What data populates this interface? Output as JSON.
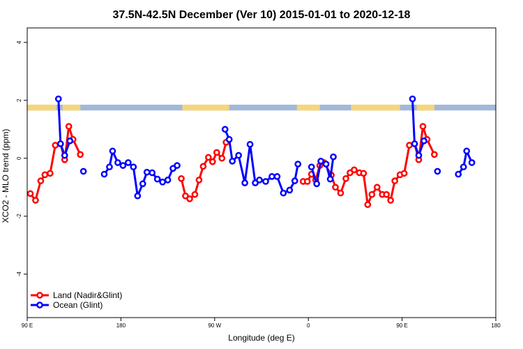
{
  "chart_data": {
    "type": "line",
    "title": "37.5N-42.5N December (Ver 10)   2015-01-01 to 2020-12-18",
    "xlabel": "Longitude (deg E)",
    "ylabel": "XCO2 - MLO trend (ppm)",
    "xlim": [
      90,
      540
    ],
    "ylim": [
      -5.5,
      4.5
    ],
    "x_ticks": [
      {
        "value": 90,
        "label": "90 E"
      },
      {
        "value": 180,
        "label": "180"
      },
      {
        "value": 270,
        "label": "90 W"
      },
      {
        "value": 360,
        "label": "0"
      },
      {
        "value": 450,
        "label": "90 E"
      },
      {
        "value": 540,
        "label": "180"
      }
    ],
    "y_ticks": [
      {
        "value": 4,
        "label": "4"
      },
      {
        "value": 2,
        "label": "2"
      },
      {
        "value": 0,
        "label": "0"
      },
      {
        "value": -2,
        "label": "-2"
      },
      {
        "value": -4,
        "label": "-4"
      }
    ],
    "land_ocean_strip": {
      "y_range": [
        1.65,
        1.85
      ],
      "land_color": "#f5d67a",
      "ocean_color": "#a3b8d8",
      "land_segments": [
        [
          90,
          118
        ],
        [
          124,
          141
        ],
        [
          239,
          284
        ],
        [
          349,
          371
        ],
        [
          401,
          448
        ],
        [
          464,
          481
        ]
      ]
    },
    "legend_position": "bottom-left",
    "series": [
      {
        "name": "Land (Nadir&Glint)",
        "color": "#ff0000",
        "segments": [
          [
            [
              93,
              -1.22
            ],
            [
              98,
              -1.45
            ],
            [
              103,
              -0.78
            ],
            [
              107,
              -0.57
            ],
            [
              112,
              -0.52
            ],
            [
              117,
              0.45
            ],
            [
              122,
              0.5
            ],
            [
              126,
              -0.05
            ],
            [
              130,
              1.1
            ],
            [
              134,
              0.65
            ],
            [
              141,
              0.13
            ]
          ],
          [
            [
              238,
              -0.7
            ],
            [
              242,
              -1.3
            ],
            [
              246,
              -1.4
            ],
            [
              251,
              -1.25
            ],
            [
              255,
              -0.75
            ],
            [
              259,
              -0.28
            ],
            [
              264,
              0.03
            ],
            [
              268,
              -0.12
            ],
            [
              272,
              0.2
            ],
            [
              277,
              0.0
            ],
            [
              281,
              0.55
            ]
          ],
          [
            [
              355,
              -0.8
            ],
            [
              359,
              -0.8
            ],
            [
              363,
              -0.55
            ],
            [
              367,
              -0.75
            ],
            [
              371,
              -0.25
            ],
            [
              375,
              -0.15
            ],
            [
              382,
              -0.58
            ],
            [
              386,
              -1.0
            ],
            [
              391,
              -1.2
            ],
            [
              396,
              -0.7
            ],
            [
              400,
              -0.5
            ],
            [
              404,
              -0.4
            ],
            [
              409,
              -0.5
            ],
            [
              413,
              -0.52
            ],
            [
              417,
              -1.6
            ],
            [
              421,
              -1.25
            ],
            [
              426,
              -1.0
            ],
            [
              431,
              -1.25
            ],
            [
              435,
              -1.25
            ],
            [
              439,
              -1.45
            ],
            [
              443,
              -0.78
            ],
            [
              448,
              -0.57
            ],
            [
              452,
              -0.52
            ],
            [
              457,
              0.45
            ],
            [
              462,
              0.5
            ],
            [
              466,
              -0.05
            ],
            [
              470,
              1.1
            ],
            [
              474,
              0.65
            ],
            [
              481,
              0.13
            ]
          ]
        ]
      },
      {
        "name": "Ocean (Glint)",
        "color": "#0000ff",
        "segments": [
          [
            [
              120,
              2.05
            ],
            [
              122,
              0.5
            ],
            [
              126,
              0.1
            ],
            [
              131,
              0.6
            ]
          ],
          [
            [
              144,
              -0.45
            ]
          ],
          [
            [
              164,
              -0.55
            ],
            [
              169,
              -0.3
            ],
            [
              172,
              0.25
            ],
            [
              177,
              -0.15
            ],
            [
              182,
              -0.25
            ],
            [
              187,
              -0.15
            ],
            [
              192,
              -0.3
            ],
            [
              196,
              -1.3
            ],
            [
              201,
              -0.88
            ],
            [
              205,
              -0.48
            ],
            [
              210,
              -0.5
            ],
            [
              215,
              -0.72
            ],
            [
              220,
              -0.82
            ],
            [
              225,
              -0.75
            ],
            [
              230,
              -0.35
            ],
            [
              234,
              -0.25
            ]
          ],
          [
            [
              280,
              1.0
            ],
            [
              284,
              0.65
            ],
            [
              287,
              -0.1
            ],
            [
              293,
              0.1
            ],
            [
              299,
              -0.85
            ],
            [
              304,
              0.48
            ],
            [
              309,
              -0.85
            ],
            [
              313,
              -0.75
            ],
            [
              319,
              -0.8
            ],
            [
              325,
              -0.63
            ],
            [
              330,
              -0.63
            ],
            [
              336,
              -1.2
            ],
            [
              342,
              -1.1
            ],
            [
              347,
              -0.78
            ],
            [
              350,
              -0.2
            ]
          ],
          [
            [
              363,
              -0.3
            ],
            [
              368,
              -0.88
            ],
            [
              372,
              -0.1
            ],
            [
              377,
              -0.2
            ],
            [
              381,
              -0.72
            ],
            [
              384,
              0.05
            ]
          ],
          [
            [
              460,
              2.05
            ],
            [
              462,
              0.5
            ],
            [
              466,
              0.1
            ],
            [
              471,
              0.6
            ]
          ],
          [
            [
              484,
              -0.45
            ]
          ],
          [
            [
              504,
              -0.55
            ],
            [
              509,
              -0.3
            ],
            [
              512,
              0.25
            ],
            [
              517,
              -0.15
            ]
          ]
        ]
      }
    ]
  }
}
